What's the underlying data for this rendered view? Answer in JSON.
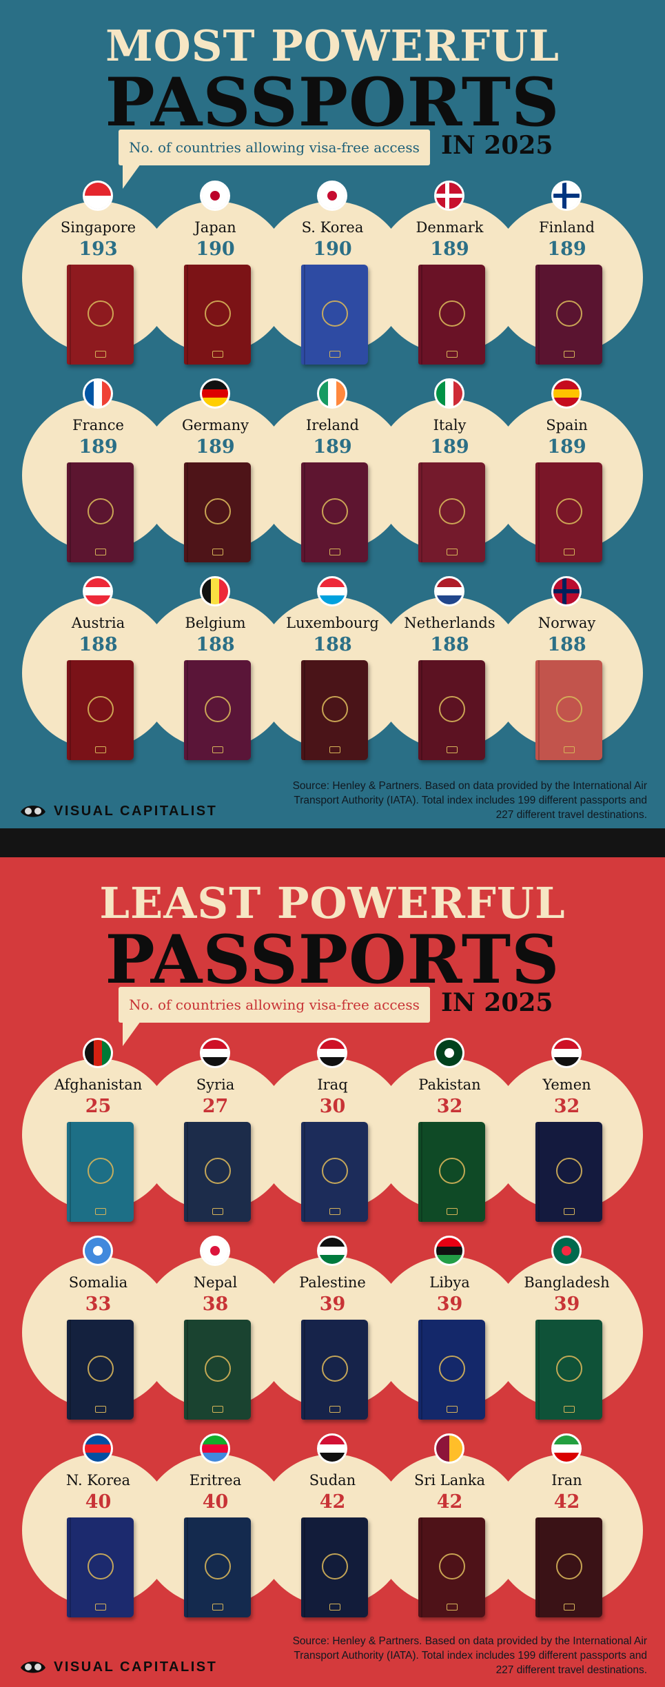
{
  "most": {
    "title_top": "MOST POWERFUL",
    "title_main": "PASSPORTS",
    "callout": "No. of countries allowing visa-free access",
    "year": "IN 2025",
    "countries": [
      {
        "name": "Singapore",
        "score": "193",
        "cover": "#8e1a1f",
        "flag": [
          "#e4262d",
          "#ffffff"
        ]
      },
      {
        "name": "Japan",
        "score": "190",
        "cover": "#7c1316",
        "flag": [
          "#ffffff",
          "#ffffff"
        ],
        "dot": "#bc0029"
      },
      {
        "name": "S. Korea",
        "score": "190",
        "cover": "#2e4ba3",
        "flag": [
          "#ffffff",
          "#ffffff"
        ],
        "dot": "#c60c30"
      },
      {
        "name": "Denmark",
        "score": "189",
        "cover": "#6a1226",
        "flag": [
          "#c8102e",
          "#c8102e"
        ],
        "cross": "#ffffff"
      },
      {
        "name": "Finland",
        "score": "189",
        "cover": "#5a1430",
        "flag": [
          "#ffffff",
          "#ffffff"
        ],
        "cross": "#003580"
      },
      {
        "name": "France",
        "score": "189",
        "cover": "#5c1530",
        "flag": [
          "#0055a4",
          "#ffffff",
          "#ef4135"
        ],
        "vertical": true
      },
      {
        "name": "Germany",
        "score": "189",
        "cover": "#4e1418",
        "flag": [
          "#111111",
          "#dd0000",
          "#ffce00"
        ]
      },
      {
        "name": "Ireland",
        "score": "189",
        "cover": "#5e1530",
        "flag": [
          "#169b62",
          "#ffffff",
          "#ff883e"
        ],
        "vertical": true
      },
      {
        "name": "Italy",
        "score": "189",
        "cover": "#741a2c",
        "flag": [
          "#009246",
          "#ffffff",
          "#ce2b37"
        ],
        "vertical": true
      },
      {
        "name": "Spain",
        "score": "189",
        "cover": "#7a1628",
        "flag": [
          "#c60b1e",
          "#ffc400",
          "#c60b1e"
        ]
      },
      {
        "name": "Austria",
        "score": "188",
        "cover": "#7a1218",
        "flag": [
          "#ed2939",
          "#ffffff",
          "#ed2939"
        ]
      },
      {
        "name": "Belgium",
        "score": "188",
        "cover": "#5a1538",
        "flag": [
          "#111111",
          "#fae042",
          "#ed2939"
        ],
        "vertical": true
      },
      {
        "name": "Luxembourg",
        "score": "188",
        "cover": "#4a1418",
        "flag": [
          "#ed2939",
          "#ffffff",
          "#00a1de"
        ]
      },
      {
        "name": "Netherlands",
        "score": "188",
        "cover": "#5c1222",
        "flag": [
          "#ae1c28",
          "#ffffff",
          "#21468b"
        ]
      },
      {
        "name": "Norway",
        "score": "188",
        "cover": "#c2544c",
        "flag": [
          "#ba0c2f",
          "#ba0c2f"
        ],
        "cross": "#00205b"
      }
    ],
    "source": "Source: Henley & Partners. Based on data provided by the International Air Transport Authority (IATA). Total index includes 199 different passports and 227 different travel destinations.",
    "brand": "VISUAL CAPITALIST"
  },
  "least": {
    "title_top": "LEAST POWERFUL",
    "title_main": "PASSPORTS",
    "callout": "No. of countries allowing visa-free access",
    "year": "IN 2025",
    "countries": [
      {
        "name": "Afghanistan",
        "score": "25",
        "cover": "#1d6f86",
        "flag": [
          "#111111",
          "#d32011",
          "#007a36"
        ],
        "vertical": true
      },
      {
        "name": "Syria",
        "score": "27",
        "cover": "#1c2c4a",
        "flag": [
          "#ce1126",
          "#ffffff",
          "#111111"
        ]
      },
      {
        "name": "Iraq",
        "score": "30",
        "cover": "#1c2c5a",
        "flag": [
          "#ce1126",
          "#ffffff",
          "#111111"
        ]
      },
      {
        "name": "Pakistan",
        "score": "32",
        "cover": "#0f4a26",
        "flag": [
          "#01411c",
          "#01411c"
        ],
        "dot": "#ffffff"
      },
      {
        "name": "Yemen",
        "score": "32",
        "cover": "#141a3e",
        "flag": [
          "#ce1126",
          "#ffffff",
          "#111111"
        ]
      },
      {
        "name": "Somalia",
        "score": "33",
        "cover": "#14213e",
        "flag": [
          "#4189dd",
          "#4189dd"
        ],
        "dot": "#ffffff"
      },
      {
        "name": "Nepal",
        "score": "38",
        "cover": "#1a4330",
        "flag": [
          "#ffffff",
          "#ffffff"
        ],
        "dot": "#dc143c"
      },
      {
        "name": "Palestine",
        "score": "39",
        "cover": "#16234a",
        "flag": [
          "#111111",
          "#ffffff",
          "#007a3d"
        ]
      },
      {
        "name": "Libya",
        "score": "39",
        "cover": "#14286a",
        "flag": [
          "#e70013",
          "#111111",
          "#239e46"
        ]
      },
      {
        "name": "Bangladesh",
        "score": "39",
        "cover": "#0f5238",
        "flag": [
          "#006a4e",
          "#006a4e"
        ],
        "dot": "#f42a41"
      },
      {
        "name": "N. Korea",
        "score": "40",
        "cover": "#1c2a6e",
        "flag": [
          "#024fa2",
          "#ed1c27",
          "#024fa2"
        ]
      },
      {
        "name": "Eritrea",
        "score": "40",
        "cover": "#142a4e",
        "flag": [
          "#12ad2b",
          "#ea0437",
          "#4189dd"
        ]
      },
      {
        "name": "Sudan",
        "score": "42",
        "cover": "#121c3a",
        "flag": [
          "#d21034",
          "#ffffff",
          "#111111"
        ]
      },
      {
        "name": "Sri Lanka",
        "score": "42",
        "cover": "#4e1218",
        "flag": [
          "#8d153a",
          "#ffbe29"
        ],
        "vertical": true
      },
      {
        "name": "Iran",
        "score": "42",
        "cover": "#3a1216",
        "flag": [
          "#239f40",
          "#ffffff",
          "#da0000"
        ]
      }
    ],
    "source": "Source: Henley & Partners. Based on data provided by the International Air Transport Authority (IATA). Total index includes 199 different passports and 227 different travel destinations.",
    "brand": "VISUAL CAPITALIST"
  }
}
